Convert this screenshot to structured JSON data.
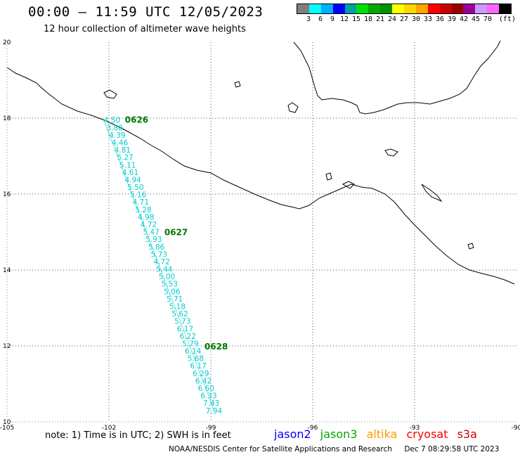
{
  "header": {
    "title": "00:00 – 11:59 UTC 12/05/2023",
    "subtitle": "12 hour collection of altimeter wave heights"
  },
  "color_scale": {
    "colors": [
      "#7f7f7f",
      "#00ffff",
      "#00b0ff",
      "#0000ff",
      "#00a0a0",
      "#00e000",
      "#00aa00",
      "#009000",
      "#ffff00",
      "#ffd700",
      "#ffa500",
      "#ff0000",
      "#cc0000",
      "#990000",
      "#990099",
      "#cc99ff",
      "#ff66ff",
      "#000000"
    ],
    "labels": [
      "3",
      "6",
      "9",
      "12",
      "15",
      "18",
      "21",
      "24",
      "27",
      "30",
      "33",
      "36",
      "39",
      "42",
      "45",
      "70"
    ],
    "unit": "(ft)"
  },
  "map": {
    "lon_labels": [
      "-105",
      "-102",
      "-99",
      "-96",
      "-93",
      "-90"
    ],
    "lat_labels": [
      "20",
      "18",
      "16",
      "14",
      "12",
      "10"
    ],
    "swh_color": "#00cccc",
    "time_color": "#007700",
    "time_labels": [
      {
        "text": "0626",
        "lat": 17.95
      },
      {
        "text": "0627",
        "lat": 14.99
      },
      {
        "text": "0628",
        "lat": 11.98
      }
    ],
    "swh_values": [
      "4.50",
      "3.80",
      "4.39",
      "4.46",
      "4.81",
      "5.27",
      "5.11",
      "4.61",
      "4.94",
      "5.50",
      "5.16",
      "4.71",
      "5.28",
      "4.98",
      "4.72",
      "5.47",
      "5.93",
      "5.86",
      "5.73",
      "4.72",
      "5.44",
      "5.00",
      "5.53",
      "5.06",
      "5.71",
      "5.18",
      "5.62",
      "5.73",
      "6.17",
      "6.22",
      "5.79",
      "6.14",
      "5.68",
      "6.17",
      "6.29",
      "6.42",
      "6.60",
      "6.33",
      "7.43",
      "7.94"
    ]
  },
  "note": "note: 1) Time is in UTC; 2) SWH is in feet",
  "satellites": [
    {
      "name": "jason2",
      "color": "#0000ff"
    },
    {
      "name": "jason3",
      "color": "#00aa00"
    },
    {
      "name": "altika",
      "color": "#ff9900"
    },
    {
      "name": "cryosat",
      "color": "#ff0000"
    },
    {
      "name": "s3a",
      "color": "#cc0000"
    }
  ],
  "footer": {
    "credit": "NOAA/NESDIS Center for Satellite Applications and Research",
    "date": "Dec  7 08:29:58 UTC 2023"
  }
}
